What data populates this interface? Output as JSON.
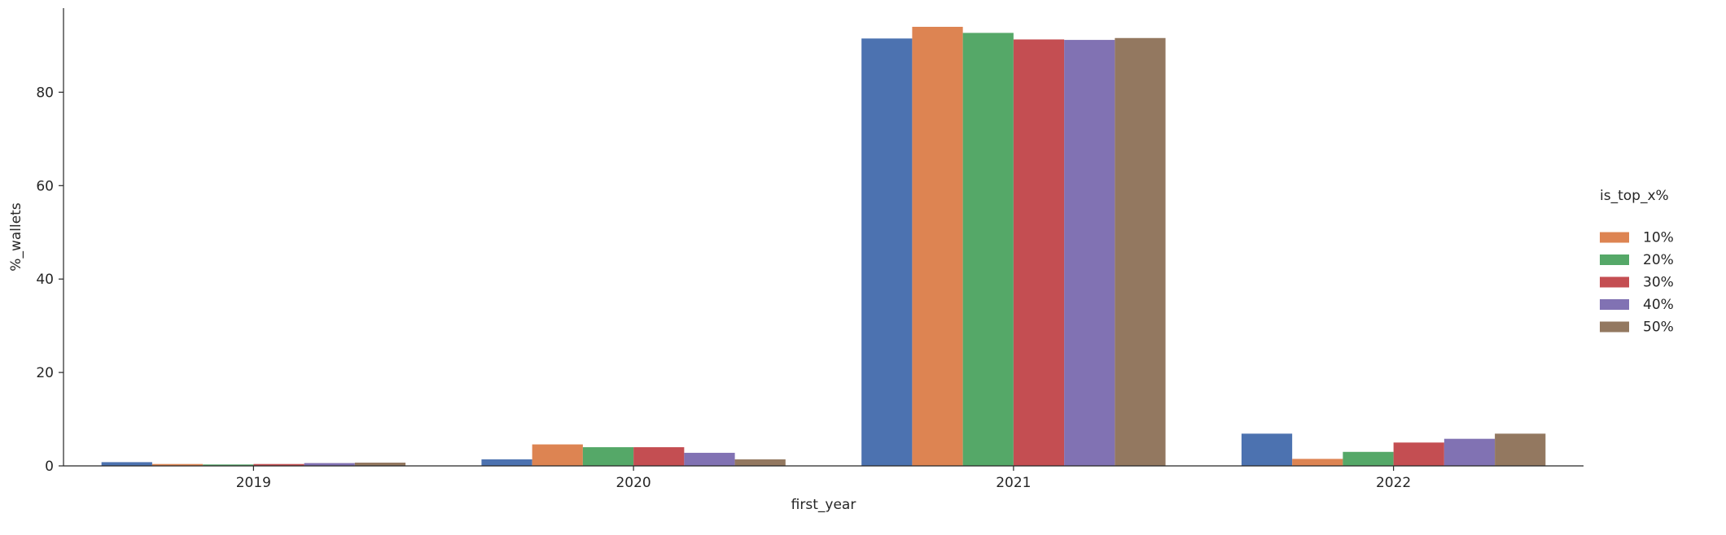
{
  "chart_data": {
    "type": "bar",
    "title": "",
    "xlabel": "first_year",
    "ylabel": "%_wallets",
    "categories": [
      "2019",
      "2020",
      "2021",
      "2022"
    ],
    "ylim": [
      0,
      98
    ],
    "yticks": [
      0,
      20,
      40,
      60,
      80
    ],
    "grid": false,
    "legend": {
      "title": "is_top_x%",
      "placement": "right"
    },
    "series": [
      {
        "name": "",
        "color": "#4c72b0",
        "values": [
          0.8,
          1.4,
          91.5,
          6.9
        ]
      },
      {
        "name": "10%",
        "color": "#dd8452",
        "values": [
          0.4,
          4.6,
          94.0,
          1.5
        ]
      },
      {
        "name": "20%",
        "color": "#55a868",
        "values": [
          0.3,
          4.0,
          92.7,
          3.0
        ]
      },
      {
        "name": "30%",
        "color": "#c44e52",
        "values": [
          0.4,
          4.0,
          91.3,
          5.0
        ]
      },
      {
        "name": "40%",
        "color": "#8172b3",
        "values": [
          0.6,
          2.8,
          91.2,
          5.8
        ]
      },
      {
        "name": "50%",
        "color": "#937860",
        "values": [
          0.7,
          1.4,
          91.6,
          6.9
        ]
      }
    ]
  }
}
